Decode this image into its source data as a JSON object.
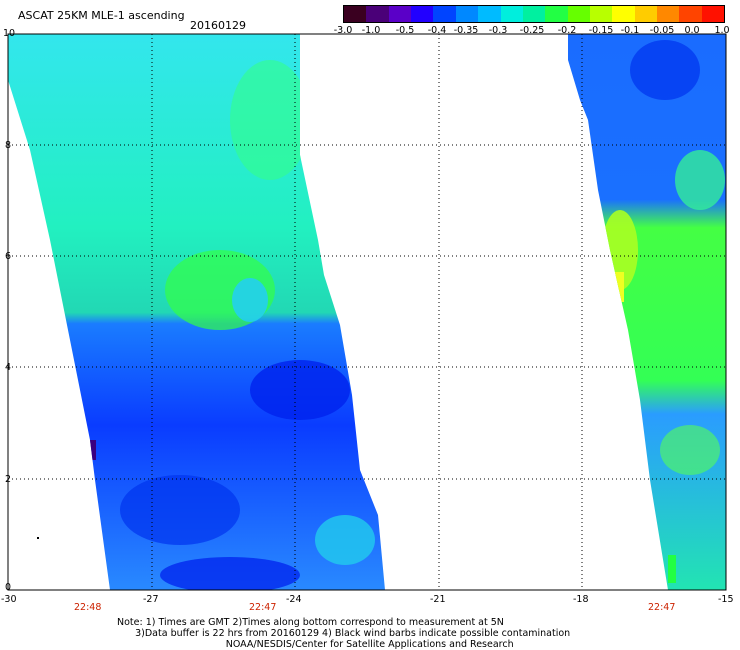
{
  "header": {
    "title": "ASCAT 25KM MLE-1 ascending",
    "date": "20160129"
  },
  "colorbar": {
    "colors": [
      "#3a0020",
      "#4a0078",
      "#5a00c8",
      "#2200ff",
      "#0044ff",
      "#0088ff",
      "#00bbff",
      "#00eedd",
      "#00f0a0",
      "#22ff44",
      "#66ff00",
      "#b8ff00",
      "#ffff00",
      "#ffcc00",
      "#ff8800",
      "#ff4400",
      "#ff1100"
    ],
    "ticks": [
      "-3.0",
      "-1.0",
      "-0.5",
      "-0.4",
      "-0.35",
      "-0.3",
      "-0.25",
      "-0.2",
      "-0.15",
      "-0.1",
      "-0.05",
      "0.0",
      "1.0"
    ]
  },
  "map": {
    "lat_labels": [
      "10",
      "8",
      "6",
      "4",
      "2",
      "0"
    ],
    "lon_labels": [
      "-30",
      "-27",
      "-24",
      "-21",
      "-18",
      "-15"
    ],
    "time_labels": [
      "22:48",
      "22:47",
      "22:47"
    ],
    "lat_range": [
      0,
      10
    ],
    "lon_range": [
      -30,
      -15
    ]
  },
  "notes": {
    "line1": "Note: 1) Times are GMT 2)Times along bottom correspond to measurement at 5N",
    "line2": "      3)Data buffer is 22 hrs from 20160129 4) Black wind barbs indicate possible contamination",
    "line3": "                                    NOAA/NESDIS/Center for Satellite Applications and Research"
  }
}
